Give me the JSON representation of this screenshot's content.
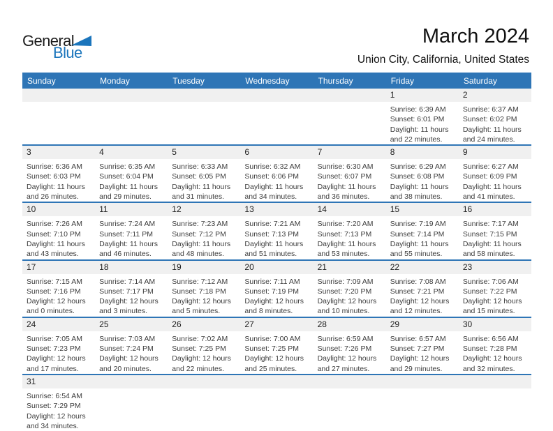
{
  "logo": {
    "text_general": "General",
    "text_blue": "Blue"
  },
  "title": "March 2024",
  "subtitle": "Union City, California, United States",
  "colors": {
    "header_bg": "#2E75B6",
    "row_divider": "#2E75B6",
    "day_strip_bg": "#F0F0F0",
    "logo_blue": "#1B75BC"
  },
  "weekday_headers": [
    "Sunday",
    "Monday",
    "Tuesday",
    "Wednesday",
    "Thursday",
    "Friday",
    "Saturday"
  ],
  "weeks": [
    [
      {
        "day": ""
      },
      {
        "day": ""
      },
      {
        "day": ""
      },
      {
        "day": ""
      },
      {
        "day": ""
      },
      {
        "day": "1",
        "lines": [
          "Sunrise: 6:39 AM",
          "Sunset: 6:01 PM",
          "Daylight: 11 hours",
          "and 22 minutes."
        ]
      },
      {
        "day": "2",
        "lines": [
          "Sunrise: 6:37 AM",
          "Sunset: 6:02 PM",
          "Daylight: 11 hours",
          "and 24 minutes."
        ]
      }
    ],
    [
      {
        "day": "3",
        "lines": [
          "Sunrise: 6:36 AM",
          "Sunset: 6:03 PM",
          "Daylight: 11 hours",
          "and 26 minutes."
        ]
      },
      {
        "day": "4",
        "lines": [
          "Sunrise: 6:35 AM",
          "Sunset: 6:04 PM",
          "Daylight: 11 hours",
          "and 29 minutes."
        ]
      },
      {
        "day": "5",
        "lines": [
          "Sunrise: 6:33 AM",
          "Sunset: 6:05 PM",
          "Daylight: 11 hours",
          "and 31 minutes."
        ]
      },
      {
        "day": "6",
        "lines": [
          "Sunrise: 6:32 AM",
          "Sunset: 6:06 PM",
          "Daylight: 11 hours",
          "and 34 minutes."
        ]
      },
      {
        "day": "7",
        "lines": [
          "Sunrise: 6:30 AM",
          "Sunset: 6:07 PM",
          "Daylight: 11 hours",
          "and 36 minutes."
        ]
      },
      {
        "day": "8",
        "lines": [
          "Sunrise: 6:29 AM",
          "Sunset: 6:08 PM",
          "Daylight: 11 hours",
          "and 38 minutes."
        ]
      },
      {
        "day": "9",
        "lines": [
          "Sunrise: 6:27 AM",
          "Sunset: 6:09 PM",
          "Daylight: 11 hours",
          "and 41 minutes."
        ]
      }
    ],
    [
      {
        "day": "10",
        "lines": [
          "Sunrise: 7:26 AM",
          "Sunset: 7:10 PM",
          "Daylight: 11 hours",
          "and 43 minutes."
        ]
      },
      {
        "day": "11",
        "lines": [
          "Sunrise: 7:24 AM",
          "Sunset: 7:11 PM",
          "Daylight: 11 hours",
          "and 46 minutes."
        ]
      },
      {
        "day": "12",
        "lines": [
          "Sunrise: 7:23 AM",
          "Sunset: 7:12 PM",
          "Daylight: 11 hours",
          "and 48 minutes."
        ]
      },
      {
        "day": "13",
        "lines": [
          "Sunrise: 7:21 AM",
          "Sunset: 7:13 PM",
          "Daylight: 11 hours",
          "and 51 minutes."
        ]
      },
      {
        "day": "14",
        "lines": [
          "Sunrise: 7:20 AM",
          "Sunset: 7:13 PM",
          "Daylight: 11 hours",
          "and 53 minutes."
        ]
      },
      {
        "day": "15",
        "lines": [
          "Sunrise: 7:19 AM",
          "Sunset: 7:14 PM",
          "Daylight: 11 hours",
          "and 55 minutes."
        ]
      },
      {
        "day": "16",
        "lines": [
          "Sunrise: 7:17 AM",
          "Sunset: 7:15 PM",
          "Daylight: 11 hours",
          "and 58 minutes."
        ]
      }
    ],
    [
      {
        "day": "17",
        "lines": [
          "Sunrise: 7:15 AM",
          "Sunset: 7:16 PM",
          "Daylight: 12 hours",
          "and 0 minutes."
        ]
      },
      {
        "day": "18",
        "lines": [
          "Sunrise: 7:14 AM",
          "Sunset: 7:17 PM",
          "Daylight: 12 hours",
          "and 3 minutes."
        ]
      },
      {
        "day": "19",
        "lines": [
          "Sunrise: 7:12 AM",
          "Sunset: 7:18 PM",
          "Daylight: 12 hours",
          "and 5 minutes."
        ]
      },
      {
        "day": "20",
        "lines": [
          "Sunrise: 7:11 AM",
          "Sunset: 7:19 PM",
          "Daylight: 12 hours",
          "and 8 minutes."
        ]
      },
      {
        "day": "21",
        "lines": [
          "Sunrise: 7:09 AM",
          "Sunset: 7:20 PM",
          "Daylight: 12 hours",
          "and 10 minutes."
        ]
      },
      {
        "day": "22",
        "lines": [
          "Sunrise: 7:08 AM",
          "Sunset: 7:21 PM",
          "Daylight: 12 hours",
          "and 12 minutes."
        ]
      },
      {
        "day": "23",
        "lines": [
          "Sunrise: 7:06 AM",
          "Sunset: 7:22 PM",
          "Daylight: 12 hours",
          "and 15 minutes."
        ]
      }
    ],
    [
      {
        "day": "24",
        "lines": [
          "Sunrise: 7:05 AM",
          "Sunset: 7:23 PM",
          "Daylight: 12 hours",
          "and 17 minutes."
        ]
      },
      {
        "day": "25",
        "lines": [
          "Sunrise: 7:03 AM",
          "Sunset: 7:24 PM",
          "Daylight: 12 hours",
          "and 20 minutes."
        ]
      },
      {
        "day": "26",
        "lines": [
          "Sunrise: 7:02 AM",
          "Sunset: 7:25 PM",
          "Daylight: 12 hours",
          "and 22 minutes."
        ]
      },
      {
        "day": "27",
        "lines": [
          "Sunrise: 7:00 AM",
          "Sunset: 7:25 PM",
          "Daylight: 12 hours",
          "and 25 minutes."
        ]
      },
      {
        "day": "28",
        "lines": [
          "Sunrise: 6:59 AM",
          "Sunset: 7:26 PM",
          "Daylight: 12 hours",
          "and 27 minutes."
        ]
      },
      {
        "day": "29",
        "lines": [
          "Sunrise: 6:57 AM",
          "Sunset: 7:27 PM",
          "Daylight: 12 hours",
          "and 29 minutes."
        ]
      },
      {
        "day": "30",
        "lines": [
          "Sunrise: 6:56 AM",
          "Sunset: 7:28 PM",
          "Daylight: 12 hours",
          "and 32 minutes."
        ]
      }
    ],
    [
      {
        "day": "31",
        "lines": [
          "Sunrise: 6:54 AM",
          "Sunset: 7:29 PM",
          "Daylight: 12 hours",
          "and 34 minutes."
        ]
      },
      {
        "day": ""
      },
      {
        "day": ""
      },
      {
        "day": ""
      },
      {
        "day": ""
      },
      {
        "day": ""
      },
      {
        "day": ""
      }
    ]
  ]
}
